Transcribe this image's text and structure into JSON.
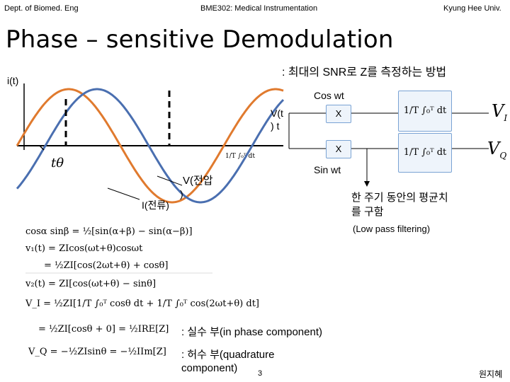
{
  "header": {
    "left": "Dept. of Biomed. Eng",
    "center": "BME302: Medical Instrumentation",
    "right": "Kyung Hee Univ."
  },
  "title": "Phase – sensitive Demodulation",
  "subtitle": ": 최대의 SNR로 Z를 측정하는 방법",
  "figure": {
    "i_label": "i(t)",
    "v_label_1": "V(t",
    "v_label_2": ") t",
    "cos_label": "Cos wt",
    "sin_label": "Sin wt",
    "mult_1": "X",
    "mult_2": "X",
    "voltage_label_1": "V(전압",
    "voltage_label_2": ")",
    "current_label": "I(전류)",
    "t_theta": "tθ",
    "integral_small": "1/T ∫₀ᵀ dt",
    "integral_1": "1/T ∫₀ᵀ dt",
    "integral_2": "1/T ∫₀ᵀ dt",
    "output_1": "V",
    "output_1_sub": "I",
    "output_2": "V",
    "output_2_sub": "Q",
    "average_note_1": "한 주기 동안의 평균치",
    "average_note_2": "를 구함",
    "lpf_note": "(Low pass filtering)",
    "orange_color": "#e07a2e",
    "blue_color": "#4a6fb0"
  },
  "equations": {
    "eq1": "cosα sinβ = ½[sin(α+β) − sin(α−β)]",
    "eq2": "v₁(t) = ZIcos(ωt+θ)cosωt",
    "eq3": "= ½ZI[cos(2ωt+θ) + cosθ]",
    "eq4": "v₂(t) = ZI[cos(ωt+θ) − sinθ]",
    "eq5": "V_I = ½ZI[1/T ∫₀ᵀ cosθ dt + 1/T ∫₀ᵀ cos(2ωt+θ) dt]",
    "eq6": "= ½ZI[cosθ + 0] = ½IRE[Z]",
    "eq7": "V_Q = −½ZIsinθ = −½IIm[Z]"
  },
  "notes": {
    "real": ": 실수 부(in phase component)",
    "imag_1": ": 허수 부(quadrature",
    "imag_2": "component)"
  },
  "footer": {
    "page": "3",
    "author": "원지혜"
  }
}
